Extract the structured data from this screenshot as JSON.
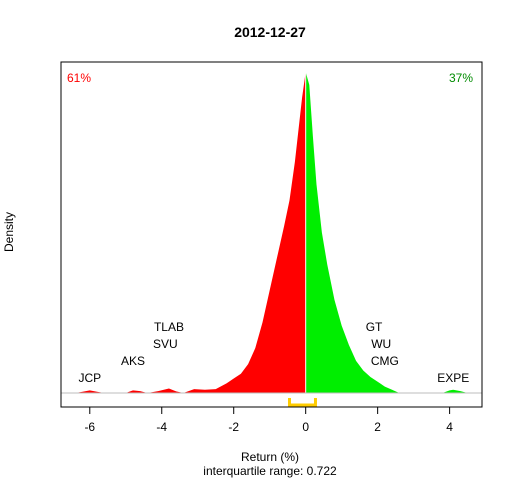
{
  "chart_data": {
    "type": "area",
    "title": "2012-12-27",
    "xlabel": "Return (%)",
    "ylabel": "Density",
    "subtitle": "interquartile range: 0.722",
    "xlim": [
      -6.8,
      4.9
    ],
    "x_ticks": [
      -6,
      -4,
      -2,
      0,
      2,
      4
    ],
    "x_tick_labels": [
      "-6",
      "-4",
      "-2",
      "0",
      "2",
      "4"
    ],
    "grid": false,
    "split_at": 0,
    "left_share_label": "61%",
    "right_share_label": "37%",
    "colors": {
      "negative": "#ff0000",
      "positive": "#00ee00",
      "iqr_bracket": "#ffcc00",
      "baseline": "#bebebe"
    },
    "density": {
      "x": [
        -6.4,
        -6.2,
        -6.0,
        -5.8,
        -5.6,
        -5.0,
        -4.8,
        -4.6,
        -4.4,
        -4.1,
        -3.8,
        -3.6,
        -3.4,
        -3.1,
        -2.8,
        -2.5,
        -2.2,
        -2.0,
        -1.8,
        -1.6,
        -1.4,
        -1.2,
        -1.0,
        -0.8,
        -0.6,
        -0.45,
        -0.3,
        -0.2,
        -0.1,
        0.0,
        0.1,
        0.2,
        0.3,
        0.45,
        0.6,
        0.8,
        1.0,
        1.2,
        1.4,
        1.6,
        1.8,
        2.0,
        2.2,
        2.4,
        2.6,
        3.8,
        4.0,
        4.1,
        4.3,
        4.5
      ],
      "y": [
        0.0,
        0.004,
        0.008,
        0.004,
        0.0,
        0.0,
        0.008,
        0.006,
        0.0,
        0.006,
        0.014,
        0.005,
        0.0,
        0.012,
        0.01,
        0.012,
        0.03,
        0.045,
        0.06,
        0.09,
        0.14,
        0.22,
        0.32,
        0.42,
        0.52,
        0.6,
        0.72,
        0.82,
        0.92,
        1.0,
        0.96,
        0.8,
        0.65,
        0.5,
        0.4,
        0.29,
        0.21,
        0.15,
        0.1,
        0.07,
        0.05,
        0.035,
        0.02,
        0.01,
        0.0,
        0.0,
        0.008,
        0.01,
        0.006,
        0.0
      ]
    },
    "iqr": [
      -0.45,
      0.272
    ],
    "annotations": [
      {
        "label": "JCP",
        "x": -6.0,
        "level": 0
      },
      {
        "label": "AKS",
        "x": -4.8,
        "level": 1
      },
      {
        "label": "SVU",
        "x": -3.9,
        "level": 2
      },
      {
        "label": "TLAB",
        "x": -3.8,
        "level": 3
      },
      {
        "label": "GT",
        "x": 1.9,
        "level": 3
      },
      {
        "label": "WU",
        "x": 2.1,
        "level": 2
      },
      {
        "label": "CMG",
        "x": 2.2,
        "level": 1
      },
      {
        "label": "EXPE",
        "x": 4.1,
        "level": 0
      }
    ]
  }
}
